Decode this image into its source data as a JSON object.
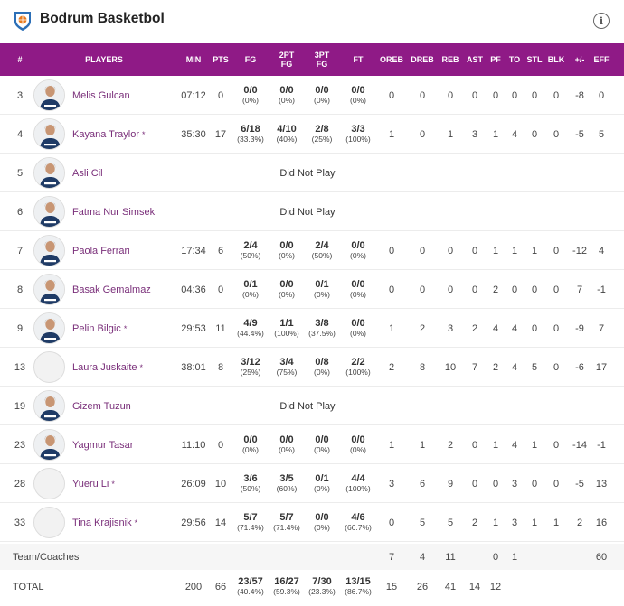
{
  "header": {
    "team_name": "Bodrum Basketbol",
    "info_icon": "info-icon"
  },
  "columns": [
    "#",
    "PLAYERS",
    "MIN",
    "PTS",
    "FG",
    "2PT FG",
    "3PT FG",
    "FT",
    "OREB",
    "DREB",
    "REB",
    "AST",
    "PF",
    "TO",
    "STL",
    "BLK",
    "+/-",
    "EFF"
  ],
  "columns_split": {
    "c2pt": [
      "2PT",
      "FG"
    ],
    "c3pt": [
      "3PT",
      "FG"
    ]
  },
  "players": [
    {
      "num": "3",
      "name": "Melis Gulcan",
      "starter": false,
      "avatar": "photo",
      "min": "07:12",
      "pts": "0",
      "fg": "0/0",
      "fgp": "(0%)",
      "p2": "0/0",
      "p2p": "(0%)",
      "p3": "0/0",
      "p3p": "(0%)",
      "ft": "0/0",
      "ftp": "(0%)",
      "oreb": "0",
      "dreb": "0",
      "reb": "0",
      "ast": "0",
      "pf": "0",
      "to": "0",
      "stl": "0",
      "blk": "0",
      "pm": "-8",
      "eff": "0"
    },
    {
      "num": "4",
      "name": "Kayana Traylor",
      "starter": true,
      "avatar": "photo",
      "min": "35:30",
      "pts": "17",
      "fg": "6/18",
      "fgp": "(33.3%)",
      "p2": "4/10",
      "p2p": "(40%)",
      "p3": "2/8",
      "p3p": "(25%)",
      "ft": "3/3",
      "ftp": "(100%)",
      "oreb": "1",
      "dreb": "0",
      "reb": "1",
      "ast": "3",
      "pf": "1",
      "to": "4",
      "stl": "0",
      "blk": "0",
      "pm": "-5",
      "eff": "5"
    },
    {
      "num": "5",
      "name": "Asli Cil",
      "starter": false,
      "avatar": "photo",
      "dnp": "Did Not Play"
    },
    {
      "num": "6",
      "name": "Fatma Nur Simsek",
      "starter": false,
      "avatar": "photo",
      "dnp": "Did Not Play"
    },
    {
      "num": "7",
      "name": "Paola Ferrari",
      "starter": false,
      "avatar": "photo",
      "min": "17:34",
      "pts": "6",
      "fg": "2/4",
      "fgp": "(50%)",
      "p2": "0/0",
      "p2p": "(0%)",
      "p3": "2/4",
      "p3p": "(50%)",
      "ft": "0/0",
      "ftp": "(0%)",
      "oreb": "0",
      "dreb": "0",
      "reb": "0",
      "ast": "0",
      "pf": "1",
      "to": "1",
      "stl": "1",
      "blk": "0",
      "pm": "-12",
      "eff": "4"
    },
    {
      "num": "8",
      "name": "Basak Gemalmaz",
      "starter": false,
      "avatar": "photo",
      "min": "04:36",
      "pts": "0",
      "fg": "0/1",
      "fgp": "(0%)",
      "p2": "0/0",
      "p2p": "(0%)",
      "p3": "0/1",
      "p3p": "(0%)",
      "ft": "0/0",
      "ftp": "(0%)",
      "oreb": "0",
      "dreb": "0",
      "reb": "0",
      "ast": "0",
      "pf": "2",
      "to": "0",
      "stl": "0",
      "blk": "0",
      "pm": "7",
      "eff": "-1"
    },
    {
      "num": "9",
      "name": "Pelin Bilgic",
      "starter": true,
      "avatar": "photo",
      "min": "29:53",
      "pts": "11",
      "fg": "4/9",
      "fgp": "(44.4%)",
      "p2": "1/1",
      "p2p": "(100%)",
      "p3": "3/8",
      "p3p": "(37.5%)",
      "ft": "0/0",
      "ftp": "(0%)",
      "oreb": "1",
      "dreb": "2",
      "reb": "3",
      "ast": "2",
      "pf": "4",
      "to": "4",
      "stl": "0",
      "blk": "0",
      "pm": "-9",
      "eff": "7"
    },
    {
      "num": "13",
      "name": "Laura Juskaite",
      "starter": true,
      "avatar": "blank",
      "min": "38:01",
      "pts": "8",
      "fg": "3/12",
      "fgp": "(25%)",
      "p2": "3/4",
      "p2p": "(75%)",
      "p3": "0/8",
      "p3p": "(0%)",
      "ft": "2/2",
      "ftp": "(100%)",
      "oreb": "2",
      "dreb": "8",
      "reb": "10",
      "ast": "7",
      "pf": "2",
      "to": "4",
      "stl": "5",
      "blk": "0",
      "pm": "-6",
      "eff": "17"
    },
    {
      "num": "19",
      "name": "Gizem Tuzun",
      "starter": false,
      "avatar": "photo",
      "dnp": "Did Not Play"
    },
    {
      "num": "23",
      "name": "Yagmur Tasar",
      "starter": false,
      "avatar": "photo",
      "min": "11:10",
      "pts": "0",
      "fg": "0/0",
      "fgp": "(0%)",
      "p2": "0/0",
      "p2p": "(0%)",
      "p3": "0/0",
      "p3p": "(0%)",
      "ft": "0/0",
      "ftp": "(0%)",
      "oreb": "1",
      "dreb": "1",
      "reb": "2",
      "ast": "0",
      "pf": "1",
      "to": "4",
      "stl": "1",
      "blk": "0",
      "pm": "-14",
      "eff": "-1"
    },
    {
      "num": "28",
      "name": "Yueru Li",
      "starter": true,
      "avatar": "blank",
      "min": "26:09",
      "pts": "10",
      "fg": "3/6",
      "fgp": "(50%)",
      "p2": "3/5",
      "p2p": "(60%)",
      "p3": "0/1",
      "p3p": "(0%)",
      "ft": "4/4",
      "ftp": "(100%)",
      "oreb": "3",
      "dreb": "6",
      "reb": "9",
      "ast": "0",
      "pf": "0",
      "to": "3",
      "stl": "0",
      "blk": "0",
      "pm": "-5",
      "eff": "13"
    },
    {
      "num": "33",
      "name": "Tina Krajisnik",
      "starter": true,
      "avatar": "blank",
      "min": "29:56",
      "pts": "14",
      "fg": "5/7",
      "fgp": "(71.4%)",
      "p2": "5/7",
      "p2p": "(71.4%)",
      "p3": "0/0",
      "p3p": "(0%)",
      "ft": "4/6",
      "ftp": "(66.7%)",
      "oreb": "0",
      "dreb": "5",
      "reb": "5",
      "ast": "2",
      "pf": "1",
      "to": "3",
      "stl": "1",
      "blk": "1",
      "pm": "2",
      "eff": "16"
    }
  ],
  "team_coaches": {
    "label": "Team/Coaches",
    "oreb": "7",
    "dreb": "4",
    "reb": "11",
    "pf": "0",
    "to": "1",
    "eff": "60"
  },
  "totals": {
    "label": "TOTAL",
    "min": "200",
    "pts": "66",
    "fg": "23/57",
    "fgp": "(40.4%)",
    "p2": "16/27",
    "p2p": "(59.3%)",
    "p3": "7/30",
    "p3p": "(23.3%)",
    "ft": "13/15",
    "ftp": "(86.7%)",
    "oreb": "15",
    "dreb": "26",
    "reb": "41",
    "ast": "14",
    "pf": "12",
    "to": "",
    "stl": "",
    "blk": "",
    "pm": "",
    "eff": ""
  },
  "colors": {
    "header_bg": "#8f1a86",
    "name_color": "#7a2f7a",
    "jersey": "#1f3b66"
  }
}
